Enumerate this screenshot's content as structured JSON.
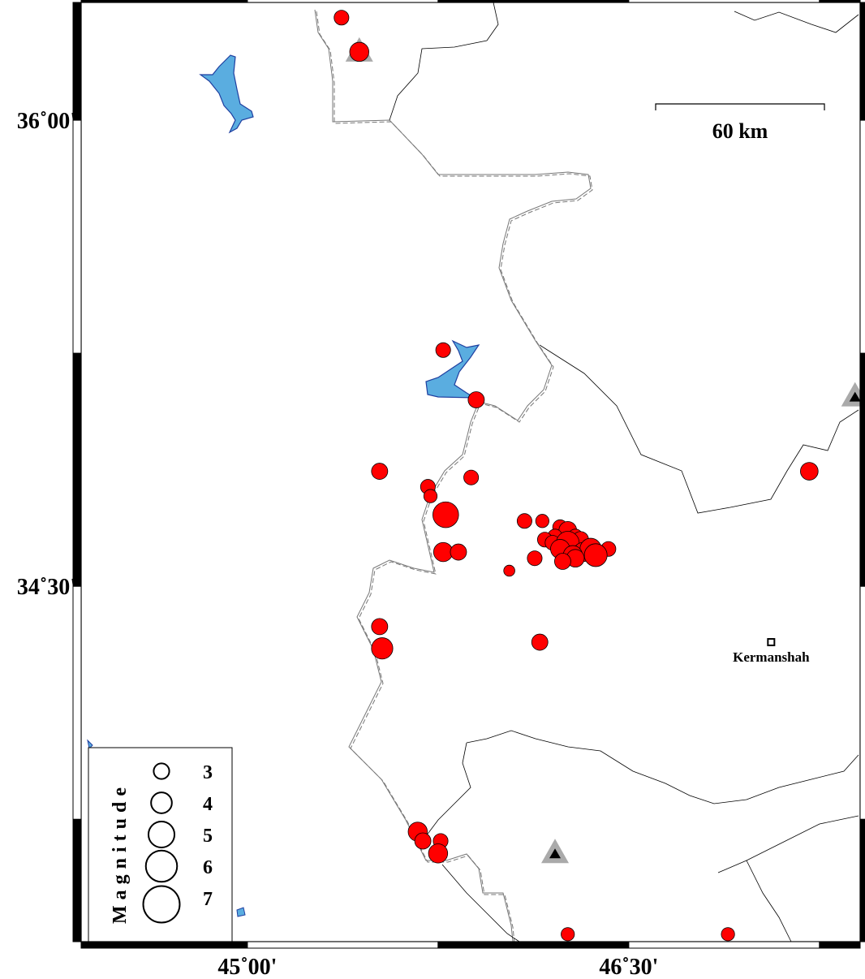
{
  "map": {
    "extent": {
      "lon": [
        44.346,
        47.41
      ],
      "lat": [
        33.356,
        36.379
      ]
    },
    "lon_ticks": [
      {
        "value": 45.0,
        "label": "45˚00'"
      },
      {
        "value": 46.5,
        "label": "46˚30'"
      }
    ],
    "lat_ticks": [
      {
        "value": 36.0,
        "label": "36˚00'"
      },
      {
        "value": 34.5,
        "label": "34˚30'"
      }
    ],
    "frame_interval_deg": 0.75,
    "scale_bar": {
      "label": "60 km",
      "length_km": 60
    },
    "colors": {
      "event": "#ff0000",
      "lake": "#5aade0",
      "lake_outline": "#1f3fa0",
      "volcano": "#aaaaaa"
    },
    "city": {
      "name": "Kermanshah",
      "lon": 47.06,
      "lat": 34.32
    },
    "volcanoes": [
      {
        "lon": 45.44,
        "lat": 36.22,
        "inner": false
      },
      {
        "lon": 47.39,
        "lat": 35.11,
        "inner": true
      },
      {
        "lon": 46.21,
        "lat": 33.64,
        "inner": true
      }
    ],
    "legend": {
      "title": "Magnitude",
      "entries": [
        {
          "mag": 3,
          "label": "3"
        },
        {
          "mag": 4,
          "label": "4"
        },
        {
          "mag": 5,
          "label": "5"
        },
        {
          "mag": 6,
          "label": "6"
        },
        {
          "mag": 7,
          "label": "7"
        }
      ]
    },
    "events": [
      {
        "lon": 45.37,
        "lat": 36.33,
        "mag": 2.8
      },
      {
        "lon": 45.44,
        "lat": 36.22,
        "mag": 3.4
      },
      {
        "lon": 45.77,
        "lat": 35.26,
        "mag": 2.8
      },
      {
        "lon": 45.9,
        "lat": 35.1,
        "mag": 3.0
      },
      {
        "lon": 45.52,
        "lat": 34.87,
        "mag": 3.0
      },
      {
        "lon": 45.71,
        "lat": 34.82,
        "mag": 2.8
      },
      {
        "lon": 45.72,
        "lat": 34.79,
        "mag": 2.6
      },
      {
        "lon": 45.88,
        "lat": 34.85,
        "mag": 2.8
      },
      {
        "lon": 45.78,
        "lat": 34.73,
        "mag": 4.3
      },
      {
        "lon": 45.77,
        "lat": 34.61,
        "mag": 3.4
      },
      {
        "lon": 45.83,
        "lat": 34.61,
        "mag": 3.0
      },
      {
        "lon": 46.03,
        "lat": 34.55,
        "mag": 2.3
      },
      {
        "lon": 46.09,
        "lat": 34.71,
        "mag": 2.8
      },
      {
        "lon": 46.16,
        "lat": 34.71,
        "mag": 2.6
      },
      {
        "lon": 46.13,
        "lat": 34.59,
        "mag": 2.8
      },
      {
        "lon": 46.23,
        "lat": 34.69,
        "mag": 2.8
      },
      {
        "lon": 46.26,
        "lat": 34.68,
        "mag": 3.2
      },
      {
        "lon": 46.21,
        "lat": 34.66,
        "mag": 2.8
      },
      {
        "lon": 46.17,
        "lat": 34.65,
        "mag": 2.8
      },
      {
        "lon": 46.29,
        "lat": 34.66,
        "mag": 2.8
      },
      {
        "lon": 46.31,
        "lat": 34.65,
        "mag": 3.0
      },
      {
        "lon": 46.2,
        "lat": 34.64,
        "mag": 2.8
      },
      {
        "lon": 46.26,
        "lat": 34.64,
        "mag": 3.9
      },
      {
        "lon": 46.23,
        "lat": 34.62,
        "mag": 3.4
      },
      {
        "lon": 46.32,
        "lat": 34.61,
        "mag": 3.4
      },
      {
        "lon": 46.35,
        "lat": 34.62,
        "mag": 3.7
      },
      {
        "lon": 46.28,
        "lat": 34.6,
        "mag": 3.4
      },
      {
        "lon": 46.29,
        "lat": 34.59,
        "mag": 3.2
      },
      {
        "lon": 46.24,
        "lat": 34.58,
        "mag": 3.0
      },
      {
        "lon": 46.42,
        "lat": 34.62,
        "mag": 2.8
      },
      {
        "lon": 46.37,
        "lat": 34.6,
        "mag": 3.9
      },
      {
        "lon": 45.52,
        "lat": 34.37,
        "mag": 3.0
      },
      {
        "lon": 45.53,
        "lat": 34.3,
        "mag": 3.7
      },
      {
        "lon": 46.15,
        "lat": 34.32,
        "mag": 3.0
      },
      {
        "lon": 47.21,
        "lat": 34.87,
        "mag": 3.2
      },
      {
        "lon": 45.67,
        "lat": 33.71,
        "mag": 3.4
      },
      {
        "lon": 45.69,
        "lat": 33.68,
        "mag": 3.0
      },
      {
        "lon": 45.76,
        "lat": 33.68,
        "mag": 2.8
      },
      {
        "lon": 45.75,
        "lat": 33.64,
        "mag": 3.4
      },
      {
        "lon": 46.26,
        "lat": 33.38,
        "mag": 2.6
      },
      {
        "lon": 46.89,
        "lat": 33.38,
        "mag": 2.6
      }
    ]
  }
}
